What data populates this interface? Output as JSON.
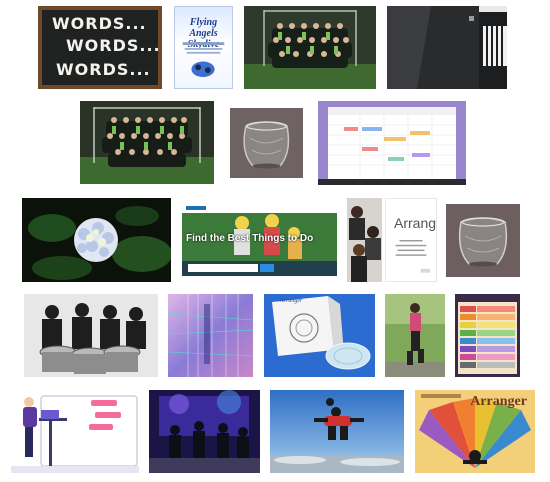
{
  "grid": {
    "tiles": [
      {
        "id": "words",
        "lines": [
          "WORDS...",
          "WORDS...",
          "WORDS..."
        ]
      },
      {
        "id": "poster",
        "title_lines": [
          "Flying Angels",
          "Skydive"
        ]
      },
      {
        "id": "team-photo-1"
      },
      {
        "id": "speaker-closeup"
      },
      {
        "id": "team-photo-2"
      },
      {
        "id": "glass-vase-1"
      },
      {
        "id": "calendar-laptop"
      },
      {
        "id": "hydrangea"
      },
      {
        "id": "website",
        "hero_text": "Find the Best Things to Do"
      },
      {
        "id": "kids-group"
      },
      {
        "id": "arranger-text",
        "title": "Arranger"
      },
      {
        "id": "glass-vase-2"
      },
      {
        "id": "steel-band"
      },
      {
        "id": "abstract-glitch"
      },
      {
        "id": "arranger-box",
        "label": "Arranger"
      },
      {
        "id": "jogger"
      },
      {
        "id": "skyhop-chart"
      },
      {
        "id": "laptop-illustration"
      },
      {
        "id": "stage-performers"
      },
      {
        "id": "skydivers"
      },
      {
        "id": "arranger-poster",
        "title": "Arranger"
      }
    ]
  }
}
